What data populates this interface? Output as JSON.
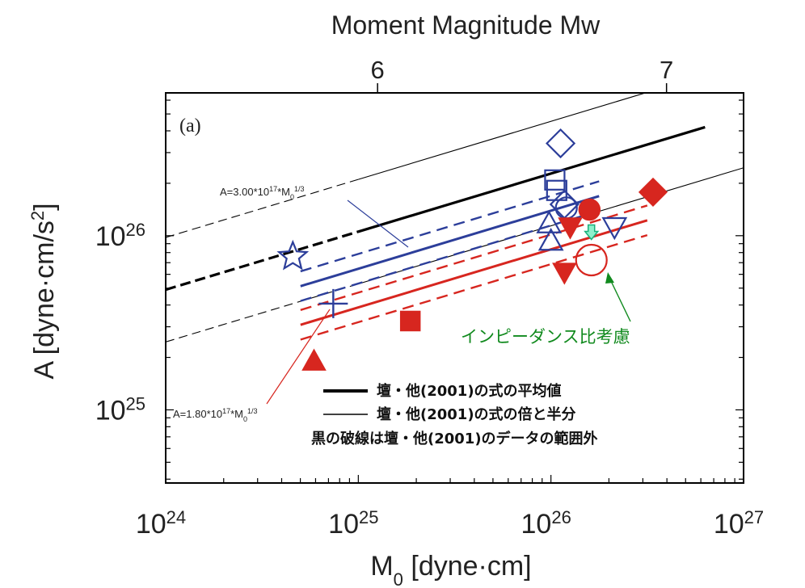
{
  "chart_data": {
    "type": "scatter",
    "panel_label": "(a)",
    "top_axis_title": "Moment Magnitude Mw",
    "top_axis_ticks": [
      {
        "value": 6,
        "label": "6"
      },
      {
        "value": 7,
        "label": "7"
      }
    ],
    "x_axis": {
      "title_main": "M",
      "title_sub": "0",
      "title_rest": " [dyne·cm]",
      "scale": "log",
      "range_log": [
        24,
        27
      ],
      "ticks": [
        {
          "exp": 24,
          "base": "10",
          "sup": "24"
        },
        {
          "exp": 25,
          "base": "10",
          "sup": "25"
        },
        {
          "exp": 26,
          "base": "10",
          "sup": "26"
        },
        {
          "exp": 27,
          "base": "10",
          "sup": "27"
        }
      ]
    },
    "y_axis": {
      "title_main": "A [dyne·cm/s",
      "title_sup": "2",
      "title_end": "]",
      "scale": "log",
      "range_log": [
        24.58,
        26.82
      ],
      "ticks": [
        {
          "exp": 25,
          "base": "10",
          "sup": "25"
        },
        {
          "exp": 26,
          "base": "10",
          "sup": "26"
        }
      ]
    },
    "reference_lines": [
      {
        "name": "mean",
        "coef_log": 17.69,
        "style": "thick",
        "color": "#000000",
        "solid_range_log": [
          25.0,
          26.8
        ],
        "dashed_range_log": [
          24.0,
          25.0
        ]
      },
      {
        "name": "double",
        "coef_log": 17.99,
        "style": "thin",
        "color": "#000000",
        "solid_range_log": [
          25.0,
          26.98
        ],
        "dashed_range_log": [
          24.0,
          25.0
        ]
      },
      {
        "name": "half",
        "coef_log": 17.39,
        "style": "thin",
        "color": "#000000",
        "solid_range_log": [
          25.0,
          27.0
        ],
        "dashed_range_log": [
          24.0,
          25.0
        ]
      }
    ],
    "fit_lines": [
      {
        "name": "blue",
        "coef_log": 17.477,
        "color": "#2c3e9a",
        "range_log": [
          24.7,
          26.25
        ],
        "band": 0.085
      },
      {
        "name": "red",
        "coef_log": 17.255,
        "color": "#d7261f",
        "range_log": [
          24.7,
          26.5
        ],
        "band": 0.085
      }
    ],
    "markers": [
      {
        "shape": "star",
        "color": "#2c3e9a",
        "fill": "none",
        "x_log": 24.66,
        "y_log": 25.88
      },
      {
        "shape": "plus",
        "color": "#2c3e9a",
        "fill": "none",
        "x_log": 24.87,
        "y_log": 25.61
      },
      {
        "shape": "diamond",
        "color": "#2c3e9a",
        "fill": "none",
        "x_log": 26.05,
        "y_log": 26.53
      },
      {
        "shape": "square",
        "color": "#2c3e9a",
        "fill": "none",
        "x_log": 26.02,
        "y_log": 26.32
      },
      {
        "shape": "square",
        "color": "#2c3e9a",
        "fill": "none",
        "x_log": 26.03,
        "y_log": 26.26
      },
      {
        "shape": "diamond",
        "color": "#2c3e9a",
        "fill": "none",
        "x_log": 26.07,
        "y_log": 26.18
      },
      {
        "shape": "circle",
        "color": "#2c3e9a",
        "fill": "none",
        "x_log": 26.08,
        "y_log": 26.16
      },
      {
        "shape": "triangle-up",
        "color": "#2c3e9a",
        "fill": "none",
        "x_log": 25.99,
        "y_log": 26.07
      },
      {
        "shape": "triangle-up",
        "color": "#2c3e9a",
        "fill": "none",
        "x_log": 26.0,
        "y_log": 25.97
      },
      {
        "shape": "triangle-down",
        "color": "#2c3e9a",
        "fill": "none",
        "x_log": 26.33,
        "y_log": 26.05
      },
      {
        "shape": "triangle-up",
        "color": "#d7261f",
        "fill": "#d7261f",
        "x_log": 24.77,
        "y_log": 25.28
      },
      {
        "shape": "square",
        "color": "#d7261f",
        "fill": "#d7261f",
        "x_log": 25.27,
        "y_log": 25.51
      },
      {
        "shape": "triangle-down",
        "color": "#d7261f",
        "fill": "#d7261f",
        "x_log": 26.07,
        "y_log": 25.79
      },
      {
        "shape": "triangle-down",
        "color": "#d7261f",
        "fill": "#d7261f",
        "x_log": 26.1,
        "y_log": 26.05
      },
      {
        "shape": "circle",
        "color": "#d7261f",
        "fill": "#d7261f",
        "x_log": 26.2,
        "y_log": 26.15
      },
      {
        "shape": "diamond",
        "color": "#d7261f",
        "fill": "#d7261f",
        "x_log": 26.53,
        "y_log": 26.25
      },
      {
        "shape": "circle",
        "color": "#d7261f",
        "fill": "none",
        "x_log": 26.21,
        "y_log": 25.86,
        "r": 19
      },
      {
        "shape": "arrow-down",
        "color": "#19b07a",
        "fill": "#8ef0cc",
        "x_log": 26.21,
        "y_log": 26.02
      }
    ],
    "annotations": {
      "blue_formula": {
        "text": "A=3.00*10",
        "sup1": "17",
        "mid": "*M",
        "sub": "0",
        "sup2": "1/3",
        "color": "#2c3e9a"
      },
      "red_formula": {
        "text": "A=1.80*10",
        "sup1": "17",
        "mid": "*M",
        "sub": "0",
        "sup2": "1/3",
        "color": "#d7261f"
      },
      "impedance_label": {
        "text": "インピーダンス比考慮",
        "color": "#118a1e"
      }
    },
    "legend": {
      "placement": "bottom-center",
      "items": [
        {
          "style": "thick",
          "label": "壇・他(2001)の式の平均値"
        },
        {
          "style": "thin",
          "label": "壇・他(2001)の式の倍と半分"
        }
      ],
      "note": "黒の破線は壇・他(2001)のデータの範囲外"
    }
  }
}
